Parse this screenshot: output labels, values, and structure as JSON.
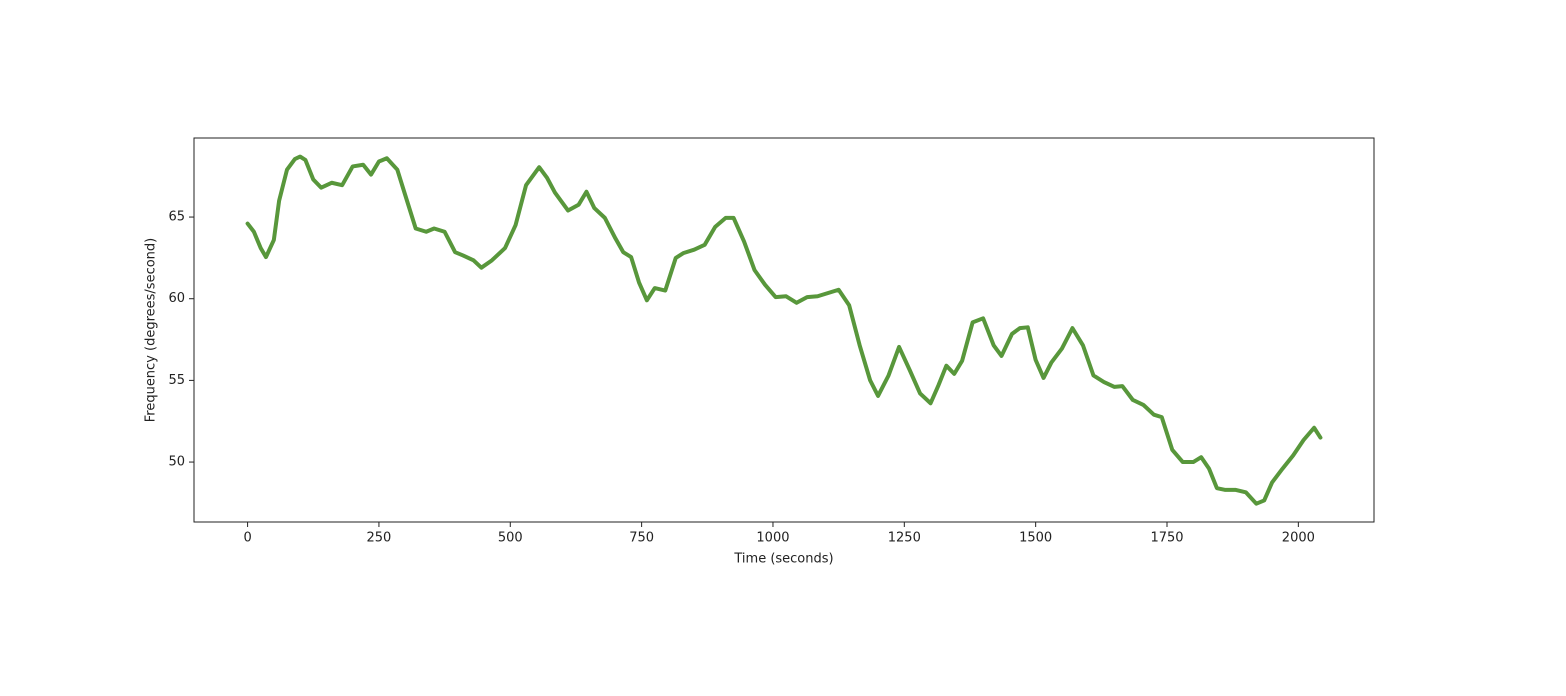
{
  "chart_data": {
    "type": "line",
    "xlabel": "Time (seconds)",
    "ylabel": "Frequency (degrees/second)",
    "xlim": [
      -102,
      2144
    ],
    "ylim": [
      46.33,
      69.84
    ],
    "xticks": [
      0,
      250,
      500,
      750,
      1000,
      1250,
      1500,
      1750,
      2000
    ],
    "yticks": [
      50,
      55,
      60,
      65
    ],
    "grid": false,
    "series": [
      {
        "color": "#58973b",
        "x": [
          0,
          12,
          25,
          35,
          50,
          60,
          75,
          90,
          100,
          110,
          125,
          140,
          160,
          180,
          200,
          220,
          235,
          250,
          265,
          285,
          300,
          320,
          340,
          355,
          375,
          395,
          410,
          430,
          445,
          465,
          490,
          510,
          530,
          555,
          570,
          585,
          610,
          630,
          645,
          660,
          680,
          700,
          715,
          730,
          745,
          760,
          775,
          795,
          815,
          830,
          850,
          870,
          890,
          910,
          925,
          945,
          965,
          985,
          1005,
          1025,
          1045,
          1065,
          1085,
          1105,
          1125,
          1145,
          1165,
          1185,
          1200,
          1220,
          1240,
          1260,
          1280,
          1300,
          1315,
          1330,
          1345,
          1360,
          1380,
          1400,
          1420,
          1435,
          1455,
          1470,
          1485,
          1500,
          1515,
          1530,
          1550,
          1570,
          1590,
          1610,
          1630,
          1650,
          1665,
          1685,
          1705,
          1725,
          1740,
          1760,
          1780,
          1800,
          1815,
          1830,
          1845,
          1860,
          1880,
          1900,
          1920,
          1935,
          1950,
          1970,
          1990,
          2010,
          2030,
          2042
        ],
        "values": [
          64.6,
          64.1,
          63.1,
          62.55,
          63.6,
          66.0,
          67.9,
          68.55,
          68.7,
          68.5,
          67.3,
          66.8,
          67.1,
          66.95,
          68.1,
          68.2,
          67.6,
          68.4,
          68.6,
          67.9,
          66.35,
          64.3,
          64.1,
          64.3,
          64.1,
          62.85,
          62.65,
          62.35,
          61.9,
          62.35,
          63.1,
          64.5,
          66.95,
          68.05,
          67.4,
          66.5,
          65.4,
          65.75,
          66.55,
          65.55,
          64.95,
          63.7,
          62.85,
          62.55,
          61.0,
          59.9,
          60.65,
          60.5,
          62.5,
          62.8,
          63.0,
          63.3,
          64.4,
          64.95,
          64.95,
          63.5,
          61.75,
          60.85,
          60.1,
          60.15,
          59.75,
          60.1,
          60.15,
          60.35,
          60.55,
          59.6,
          57.15,
          55.0,
          54.05,
          55.3,
          57.05,
          55.65,
          54.2,
          53.6,
          54.7,
          55.9,
          55.4,
          56.2,
          58.55,
          58.8,
          57.15,
          56.5,
          57.85,
          58.2,
          58.25,
          56.25,
          55.15,
          56.1,
          56.95,
          58.2,
          57.15,
          55.3,
          54.9,
          54.6,
          54.65,
          53.8,
          53.5,
          52.9,
          52.75,
          50.75,
          50.0,
          50.0,
          50.3,
          49.6,
          48.4,
          48.3,
          48.3,
          48.15,
          47.45,
          47.65,
          48.75,
          49.6,
          50.4,
          51.35,
          52.1,
          51.5
        ]
      }
    ]
  }
}
